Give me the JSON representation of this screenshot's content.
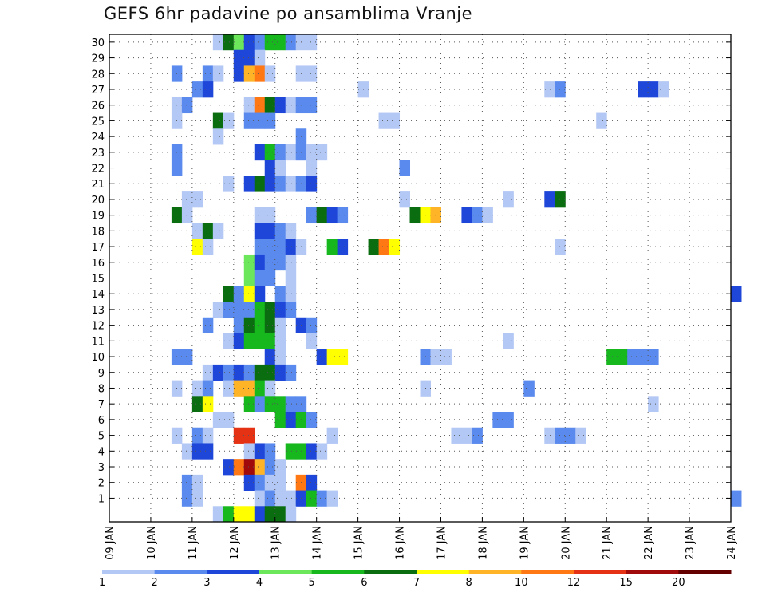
{
  "chart_data": {
    "type": "heatmap",
    "title": "GEFS 6hr padavine po ansamblima Vranje",
    "x_ticks": [
      "09 JAN",
      "10 JAN",
      "11 JAN",
      "12 JAN",
      "13 JAN",
      "14 JAN",
      "15 JAN",
      "16 JAN",
      "17 JAN",
      "18 JAN",
      "19 JAN",
      "20 JAN",
      "21 JAN",
      "22 JAN",
      "23 JAN",
      "24 JAN"
    ],
    "y_ticks": [
      1,
      2,
      3,
      4,
      5,
      6,
      7,
      8,
      9,
      10,
      11,
      12,
      13,
      14,
      15,
      16,
      17,
      18,
      19,
      20,
      21,
      22,
      23,
      24,
      25,
      26,
      27,
      28,
      29,
      30
    ],
    "steps_per_day": 4,
    "members": 31,
    "grid": true,
    "colorbar": {
      "placement": "bottom",
      "labels": [
        "1",
        "2",
        "3",
        "4",
        "5",
        "6",
        "7",
        "8",
        "10",
        "12",
        "15",
        "20"
      ],
      "colors": [
        "#b4c8f5",
        "#5a8aee",
        "#1e46d8",
        "#6ce65a",
        "#16b81e",
        "#0a6e10",
        "#ffff00",
        "#ffb428",
        "#ff7814",
        "#e63214",
        "#a00a0a",
        "#640000"
      ]
    },
    "cells_note": "each cell: [member, 6h step index from 09 JAN 00Z, color level 1-12]",
    "cells": [
      [
        30,
        10,
        1
      ],
      [
        30,
        11,
        6
      ],
      [
        30,
        12,
        4
      ],
      [
        30,
        13,
        3
      ],
      [
        30,
        14,
        2
      ],
      [
        30,
        15,
        5
      ],
      [
        30,
        16,
        5
      ],
      [
        30,
        17,
        2
      ],
      [
        30,
        18,
        1
      ],
      [
        30,
        19,
        1
      ],
      [
        29,
        12,
        3
      ],
      [
        29,
        13,
        3
      ],
      [
        29,
        14,
        1
      ],
      [
        28,
        6,
        2
      ],
      [
        28,
        9,
        2
      ],
      [
        28,
        10,
        1
      ],
      [
        28,
        12,
        3
      ],
      [
        28,
        13,
        8
      ],
      [
        28,
        14,
        9
      ],
      [
        28,
        15,
        1
      ],
      [
        28,
        18,
        1
      ],
      [
        28,
        19,
        1
      ],
      [
        27,
        8,
        2
      ],
      [
        27,
        9,
        3
      ],
      [
        27,
        24,
        1
      ],
      [
        27,
        42,
        1
      ],
      [
        27,
        43,
        2
      ],
      [
        27,
        51,
        3
      ],
      [
        27,
        52,
        3
      ],
      [
        27,
        53,
        1
      ],
      [
        26,
        6,
        1
      ],
      [
        26,
        7,
        2
      ],
      [
        26,
        13,
        1
      ],
      [
        26,
        14,
        9
      ],
      [
        26,
        15,
        6
      ],
      [
        26,
        16,
        3
      ],
      [
        26,
        17,
        1
      ],
      [
        26,
        18,
        2
      ],
      [
        26,
        19,
        2
      ],
      [
        25,
        6,
        1
      ],
      [
        25,
        10,
        6
      ],
      [
        25,
        11,
        1
      ],
      [
        25,
        13,
        2
      ],
      [
        25,
        14,
        2
      ],
      [
        25,
        15,
        2
      ],
      [
        25,
        26,
        1
      ],
      [
        25,
        27,
        1
      ],
      [
        25,
        47,
        1
      ],
      [
        24,
        10,
        1
      ],
      [
        24,
        18,
        2
      ],
      [
        23,
        6,
        2
      ],
      [
        23,
        14,
        3
      ],
      [
        23,
        15,
        5
      ],
      [
        23,
        16,
        2
      ],
      [
        23,
        17,
        1
      ],
      [
        23,
        18,
        2
      ],
      [
        23,
        19,
        1
      ],
      [
        23,
        20,
        1
      ],
      [
        22,
        6,
        2
      ],
      [
        22,
        15,
        3
      ],
      [
        22,
        16,
        1
      ],
      [
        22,
        19,
        1
      ],
      [
        22,
        28,
        2
      ],
      [
        21,
        11,
        1
      ],
      [
        21,
        13,
        3
      ],
      [
        21,
        14,
        6
      ],
      [
        21,
        15,
        3
      ],
      [
        21,
        16,
        2
      ],
      [
        21,
        17,
        1
      ],
      [
        21,
        18,
        2
      ],
      [
        21,
        19,
        3
      ],
      [
        20,
        7,
        1
      ],
      [
        20,
        8,
        1
      ],
      [
        20,
        28,
        1
      ],
      [
        20,
        38,
        1
      ],
      [
        20,
        42,
        3
      ],
      [
        20,
        43,
        6
      ],
      [
        19,
        6,
        6
      ],
      [
        19,
        7,
        1
      ],
      [
        19,
        14,
        1
      ],
      [
        19,
        15,
        1
      ],
      [
        19,
        19,
        2
      ],
      [
        19,
        20,
        6
      ],
      [
        19,
        21,
        3
      ],
      [
        19,
        22,
        2
      ],
      [
        19,
        29,
        6
      ],
      [
        19,
        30,
        7
      ],
      [
        19,
        31,
        8
      ],
      [
        19,
        34,
        3
      ],
      [
        19,
        35,
        2
      ],
      [
        19,
        36,
        1
      ],
      [
        18,
        8,
        1
      ],
      [
        18,
        9,
        6
      ],
      [
        18,
        10,
        1
      ],
      [
        18,
        14,
        3
      ],
      [
        18,
        15,
        3
      ],
      [
        18,
        16,
        2
      ],
      [
        18,
        17,
        1
      ],
      [
        17,
        8,
        7
      ],
      [
        17,
        9,
        1
      ],
      [
        17,
        14,
        2
      ],
      [
        17,
        15,
        2
      ],
      [
        17,
        16,
        2
      ],
      [
        17,
        17,
        3
      ],
      [
        17,
        18,
        1
      ],
      [
        17,
        21,
        5
      ],
      [
        17,
        22,
        3
      ],
      [
        17,
        25,
        6
      ],
      [
        17,
        26,
        9
      ],
      [
        17,
        27,
        7
      ],
      [
        17,
        43,
        1
      ],
      [
        16,
        13,
        4
      ],
      [
        16,
        14,
        3
      ],
      [
        16,
        15,
        2
      ],
      [
        16,
        16,
        2
      ],
      [
        16,
        17,
        1
      ],
      [
        15,
        13,
        4
      ],
      [
        15,
        14,
        2
      ],
      [
        15,
        15,
        2
      ],
      [
        15,
        17,
        1
      ],
      [
        14,
        11,
        6
      ],
      [
        14,
        12,
        2
      ],
      [
        14,
        13,
        7
      ],
      [
        14,
        14,
        3
      ],
      [
        14,
        16,
        2
      ],
      [
        14,
        17,
        1
      ],
      [
        14,
        60,
        3
      ],
      [
        13,
        10,
        1
      ],
      [
        13,
        11,
        2
      ],
      [
        13,
        12,
        2
      ],
      [
        13,
        13,
        2
      ],
      [
        13,
        14,
        5
      ],
      [
        13,
        15,
        6
      ],
      [
        13,
        16,
        3
      ],
      [
        13,
        17,
        2
      ],
      [
        12,
        9,
        2
      ],
      [
        12,
        12,
        2
      ],
      [
        12,
        13,
        6
      ],
      [
        12,
        14,
        5
      ],
      [
        12,
        15,
        6
      ],
      [
        12,
        16,
        1
      ],
      [
        12,
        18,
        3
      ],
      [
        12,
        19,
        2
      ],
      [
        11,
        11,
        1
      ],
      [
        11,
        12,
        3
      ],
      [
        11,
        13,
        5
      ],
      [
        11,
        14,
        5
      ],
      [
        11,
        15,
        5
      ],
      [
        11,
        16,
        1
      ],
      [
        11,
        19,
        1
      ],
      [
        11,
        38,
        1
      ],
      [
        10,
        6,
        2
      ],
      [
        10,
        7,
        2
      ],
      [
        10,
        15,
        3
      ],
      [
        10,
        16,
        1
      ],
      [
        10,
        20,
        3
      ],
      [
        10,
        21,
        7
      ],
      [
        10,
        22,
        7
      ],
      [
        10,
        30,
        2
      ],
      [
        10,
        31,
        1
      ],
      [
        10,
        32,
        1
      ],
      [
        10,
        48,
        5
      ],
      [
        10,
        49,
        5
      ],
      [
        10,
        50,
        2
      ],
      [
        10,
        51,
        2
      ],
      [
        10,
        52,
        2
      ],
      [
        9,
        9,
        1
      ],
      [
        9,
        10,
        3
      ],
      [
        9,
        11,
        2
      ],
      [
        9,
        12,
        3
      ],
      [
        9,
        13,
        2
      ],
      [
        9,
        14,
        6
      ],
      [
        9,
        15,
        6
      ],
      [
        9,
        16,
        3
      ],
      [
        9,
        17,
        2
      ],
      [
        8,
        6,
        1
      ],
      [
        8,
        8,
        1
      ],
      [
        8,
        9,
        2
      ],
      [
        8,
        11,
        1
      ],
      [
        8,
        12,
        8
      ],
      [
        8,
        13,
        8
      ],
      [
        8,
        14,
        5
      ],
      [
        8,
        15,
        1
      ],
      [
        8,
        30,
        1
      ],
      [
        8,
        40,
        2
      ],
      [
        7,
        8,
        6
      ],
      [
        7,
        9,
        7
      ],
      [
        7,
        13,
        5
      ],
      [
        7,
        14,
        2
      ],
      [
        7,
        15,
        5
      ],
      [
        7,
        16,
        5
      ],
      [
        7,
        17,
        2
      ],
      [
        7,
        18,
        2
      ],
      [
        7,
        52,
        1
      ],
      [
        6,
        10,
        1
      ],
      [
        6,
        11,
        1
      ],
      [
        6,
        16,
        5
      ],
      [
        6,
        17,
        3
      ],
      [
        6,
        18,
        5
      ],
      [
        6,
        19,
        2
      ],
      [
        6,
        37,
        2
      ],
      [
        6,
        38,
        2
      ],
      [
        5,
        6,
        1
      ],
      [
        5,
        8,
        2
      ],
      [
        5,
        9,
        1
      ],
      [
        5,
        12,
        10
      ],
      [
        5,
        13,
        10
      ],
      [
        5,
        21,
        1
      ],
      [
        5,
        33,
        1
      ],
      [
        5,
        34,
        1
      ],
      [
        5,
        35,
        2
      ],
      [
        5,
        42,
        1
      ],
      [
        5,
        43,
        2
      ],
      [
        5,
        44,
        2
      ],
      [
        5,
        45,
        1
      ],
      [
        4,
        7,
        1
      ],
      [
        4,
        8,
        3
      ],
      [
        4,
        9,
        3
      ],
      [
        4,
        13,
        1
      ],
      [
        4,
        14,
        3
      ],
      [
        4,
        15,
        2
      ],
      [
        4,
        17,
        5
      ],
      [
        4,
        18,
        5
      ],
      [
        4,
        19,
        3
      ],
      [
        4,
        20,
        1
      ],
      [
        3,
        11,
        3
      ],
      [
        3,
        12,
        9
      ],
      [
        3,
        13,
        11
      ],
      [
        3,
        14,
        8
      ],
      [
        3,
        15,
        2
      ],
      [
        3,
        16,
        1
      ],
      [
        2,
        7,
        2
      ],
      [
        2,
        8,
        1
      ],
      [
        2,
        13,
        3
      ],
      [
        2,
        14,
        2
      ],
      [
        2,
        15,
        1
      ],
      [
        2,
        16,
        1
      ],
      [
        2,
        18,
        9
      ],
      [
        2,
        19,
        3
      ],
      [
        1,
        7,
        2
      ],
      [
        1,
        8,
        1
      ],
      [
        1,
        14,
        1
      ],
      [
        1,
        15,
        2
      ],
      [
        1,
        16,
        1
      ],
      [
        1,
        17,
        1
      ],
      [
        1,
        18,
        3
      ],
      [
        1,
        19,
        5
      ],
      [
        1,
        20,
        2
      ],
      [
        1,
        21,
        1
      ],
      [
        1,
        60,
        2
      ],
      [
        0,
        10,
        1
      ],
      [
        0,
        11,
        5
      ],
      [
        0,
        12,
        7
      ],
      [
        0,
        13,
        7
      ],
      [
        0,
        14,
        3
      ],
      [
        0,
        15,
        6
      ],
      [
        0,
        16,
        6
      ],
      [
        0,
        17,
        1
      ]
    ]
  }
}
